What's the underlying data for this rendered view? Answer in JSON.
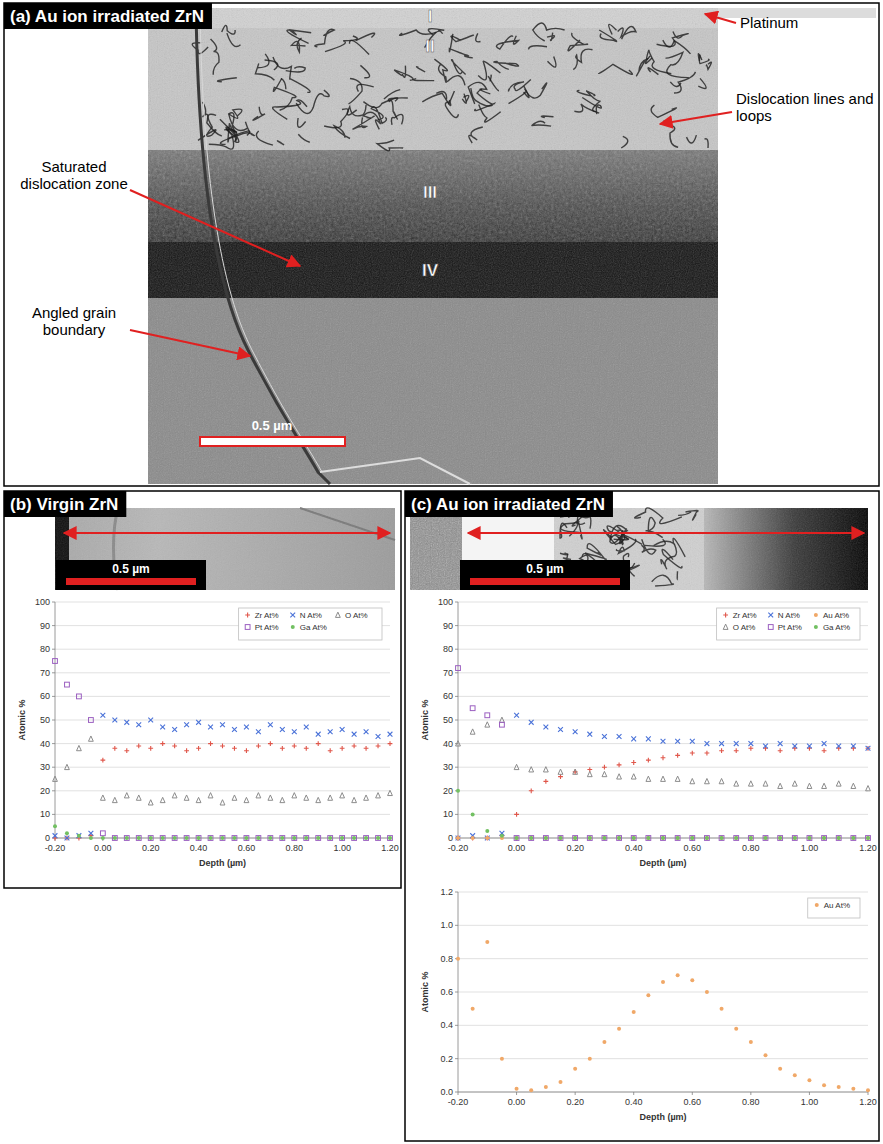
{
  "panels": [
    {
      "title": "(a) Au ion irradiated ZrN",
      "zones": [
        "I",
        "II",
        "III",
        "IV"
      ],
      "annotations": [
        "Platinum",
        "Dislocation lines and loops",
        "Saturated dislocation zone",
        "Angled grain boundary"
      ],
      "scale_bar": "0.5 µm"
    },
    {
      "title": "(b) Virgin ZrN",
      "scale_bar": "0.5 µm"
    },
    {
      "title": "(c) Au ion irradiated ZrN",
      "scale_bar": "0.5 µm"
    }
  ],
  "chart_data": [
    {
      "type": "scatter",
      "x_label": "Depth (µm)",
      "y_label": "Atomic %",
      "x": [
        -0.2,
        -0.15,
        -0.1,
        -0.05,
        0,
        0.05,
        0.1,
        0.15,
        0.2,
        0.25,
        0.3,
        0.35,
        0.4,
        0.45,
        0.5,
        0.55,
        0.6,
        0.65,
        0.7,
        0.75,
        0.8,
        0.85,
        0.9,
        0.95,
        1,
        1.05,
        1.1,
        1.15,
        1.2
      ],
      "series": [
        {
          "name": "Zr At%",
          "color": "#e0564a",
          "marker": "plus",
          "values": [
            0,
            0,
            0,
            1,
            33,
            38,
            37,
            39,
            38,
            40,
            39,
            37,
            38,
            40,
            39,
            38,
            37,
            39,
            40,
            38,
            39,
            38,
            40,
            37,
            38,
            39,
            38,
            39,
            40
          ]
        },
        {
          "name": "N At%",
          "color": "#4a72d8",
          "marker": "x",
          "values": [
            1,
            0,
            1,
            2,
            52,
            50,
            49,
            48,
            50,
            47,
            46,
            48,
            49,
            47,
            48,
            46,
            47,
            45,
            48,
            46,
            45,
            47,
            44,
            45,
            46,
            44,
            45,
            43,
            44
          ]
        },
        {
          "name": "O At%",
          "color": "#8c8c8c",
          "marker": "triangle",
          "values": [
            25,
            30,
            38,
            42,
            17,
            16,
            18,
            17,
            15,
            16,
            18,
            17,
            16,
            18,
            15,
            17,
            16,
            18,
            17,
            16,
            18,
            17,
            16,
            17,
            18,
            16,
            17,
            18,
            19
          ]
        },
        {
          "name": "Pt At%",
          "color": "#9b5fc0",
          "marker": "square",
          "values": [
            75,
            65,
            60,
            50,
            2,
            0,
            0,
            0,
            0,
            0,
            0,
            0,
            0,
            0,
            0,
            0,
            0,
            0,
            0,
            0,
            0,
            0,
            0,
            0,
            0,
            0,
            0,
            0,
            0
          ]
        },
        {
          "name": "Ga At%",
          "color": "#72c062",
          "marker": "circle",
          "values": [
            5,
            2,
            1,
            0,
            0,
            0,
            0,
            0,
            0,
            0,
            0,
            0,
            0,
            0,
            0,
            0,
            0,
            0,
            0,
            0,
            0,
            0,
            0,
            0,
            0,
            0,
            0,
            0,
            0
          ]
        }
      ],
      "xlim": [
        -0.2,
        1.2
      ],
      "ylim": [
        0,
        100
      ],
      "xticks": [
        {
          "value": -0.2,
          "label": "-0.20"
        },
        {
          "value": 0,
          "label": "0.00"
        },
        {
          "value": 0.2,
          "label": "0.20"
        },
        {
          "value": 0.4,
          "label": "0.40"
        },
        {
          "value": 0.6,
          "label": "0.60"
        },
        {
          "value": 0.8,
          "label": "0.80"
        },
        {
          "value": 1,
          "label": "1.00"
        },
        {
          "value": 1.2,
          "label": "1.20"
        }
      ],
      "yticks": [
        0,
        10,
        20,
        30,
        40,
        50,
        60,
        70,
        80,
        90,
        100
      ],
      "grid": true,
      "legend": "upper right"
    },
    {
      "type": "scatter",
      "x_label": "Depth (µm)",
      "y_label": "Atomic %",
      "x": [
        -0.2,
        -0.15,
        -0.1,
        -0.05,
        0,
        0.05,
        0.1,
        0.15,
        0.2,
        0.25,
        0.3,
        0.35,
        0.4,
        0.45,
        0.5,
        0.55,
        0.6,
        0.65,
        0.7,
        0.75,
        0.8,
        0.85,
        0.9,
        0.95,
        1,
        1.05,
        1.1,
        1.15,
        1.2
      ],
      "series": [
        {
          "name": "Zr At%",
          "color": "#e0564a",
          "marker": "plus",
          "values": [
            0,
            0,
            0,
            1,
            10,
            20,
            24,
            26,
            28,
            29,
            30,
            31,
            32,
            33,
            34,
            35,
            36,
            36,
            37,
            37,
            38,
            38,
            37,
            38,
            38,
            37,
            38,
            38,
            38
          ]
        },
        {
          "name": "N At%",
          "color": "#4a72d8",
          "marker": "x",
          "values": [
            0,
            1,
            0,
            2,
            52,
            49,
            47,
            46,
            45,
            44,
            43,
            43,
            42,
            42,
            41,
            41,
            41,
            40,
            40,
            40,
            40,
            39,
            40,
            39,
            39,
            40,
            39,
            39,
            38
          ]
        },
        {
          "name": "Au At%",
          "color": "#f0a868",
          "marker": "circle",
          "values": [
            0,
            0,
            0,
            0,
            0,
            0,
            0,
            0,
            0,
            0,
            0,
            0,
            0,
            0,
            0,
            0,
            0,
            0,
            0,
            0,
            0,
            0,
            0,
            0,
            0,
            0,
            0,
            0,
            0
          ]
        },
        {
          "name": "O At%",
          "color": "#8c8c8c",
          "marker": "triangle",
          "values": [
            40,
            45,
            48,
            50,
            30,
            29,
            29,
            28,
            28,
            27,
            27,
            26,
            26,
            25,
            25,
            25,
            24,
            24,
            24,
            23,
            23,
            23,
            22,
            23,
            22,
            22,
            23,
            22,
            21
          ]
        },
        {
          "name": "Pt At%",
          "color": "#9b5fc0",
          "marker": "square",
          "values": [
            72,
            55,
            52,
            48,
            0,
            0,
            0,
            0,
            0,
            0,
            0,
            0,
            0,
            0,
            0,
            0,
            0,
            0,
            0,
            0,
            0,
            0,
            0,
            0,
            0,
            0,
            0,
            0,
            0
          ]
        },
        {
          "name": "Ga At%",
          "color": "#72c062",
          "marker": "circle",
          "values": [
            20,
            10,
            3,
            1,
            0,
            0,
            0,
            0,
            0,
            0,
            0,
            0,
            0,
            0,
            0,
            0,
            0,
            0,
            0,
            0,
            0,
            0,
            0,
            0,
            0,
            0,
            0,
            0,
            0
          ]
        }
      ],
      "xlim": [
        -0.2,
        1.2
      ],
      "ylim": [
        0,
        100
      ],
      "xticks": [
        {
          "value": -0.2,
          "label": "-0.20"
        },
        {
          "value": 0,
          "label": "0.00"
        },
        {
          "value": 0.2,
          "label": "0.20"
        },
        {
          "value": 0.4,
          "label": "0.40"
        },
        {
          "value": 0.6,
          "label": "0.60"
        },
        {
          "value": 0.8,
          "label": "0.80"
        },
        {
          "value": 1,
          "label": "1.00"
        },
        {
          "value": 1.2,
          "label": "1.20"
        }
      ],
      "yticks": [
        0,
        10,
        20,
        30,
        40,
        50,
        60,
        70,
        80,
        90,
        100
      ],
      "grid": true,
      "legend": "upper right"
    },
    {
      "type": "scatter",
      "x_label": "Depth (µm)",
      "y_label": "Atomic %",
      "x": [
        -0.2,
        -0.15,
        -0.1,
        -0.05,
        0,
        0.05,
        0.1,
        0.15,
        0.2,
        0.25,
        0.3,
        0.35,
        0.4,
        0.45,
        0.5,
        0.55,
        0.6,
        0.65,
        0.7,
        0.75,
        0.8,
        0.85,
        0.9,
        0.95,
        1,
        1.05,
        1.1,
        1.15,
        1.2
      ],
      "series": [
        {
          "name": "Au At%",
          "color": "#f0a868",
          "marker": "circle",
          "values": [
            0.8,
            0.5,
            0.9,
            0.2,
            0.02,
            0.01,
            0.03,
            0.06,
            0.14,
            0.2,
            0.3,
            0.38,
            0.48,
            0.58,
            0.66,
            0.7,
            0.67,
            0.6,
            0.5,
            0.38,
            0.3,
            0.22,
            0.14,
            0.1,
            0.07,
            0.04,
            0.03,
            0.02,
            0.01
          ]
        }
      ],
      "xlim": [
        -0.2,
        1.2
      ],
      "ylim": [
        0,
        1.2
      ],
      "xticks": [
        {
          "value": -0.2,
          "label": "-0.20"
        },
        {
          "value": 0,
          "label": "0.00"
        },
        {
          "value": 0.2,
          "label": "0.20"
        },
        {
          "value": 0.4,
          "label": "0.40"
        },
        {
          "value": 0.6,
          "label": "0.60"
        },
        {
          "value": 0.8,
          "label": "0.80"
        },
        {
          "value": 1,
          "label": "1.00"
        },
        {
          "value": 1.2,
          "label": "1.20"
        }
      ],
      "yticks": [
        {
          "value": 0,
          "label": "0.0"
        },
        0.2,
        0.4,
        0.6,
        0.8,
        {
          "value": 1,
          "label": "1.0"
        },
        1.2
      ],
      "grid": true,
      "legend": "upper right"
    }
  ]
}
